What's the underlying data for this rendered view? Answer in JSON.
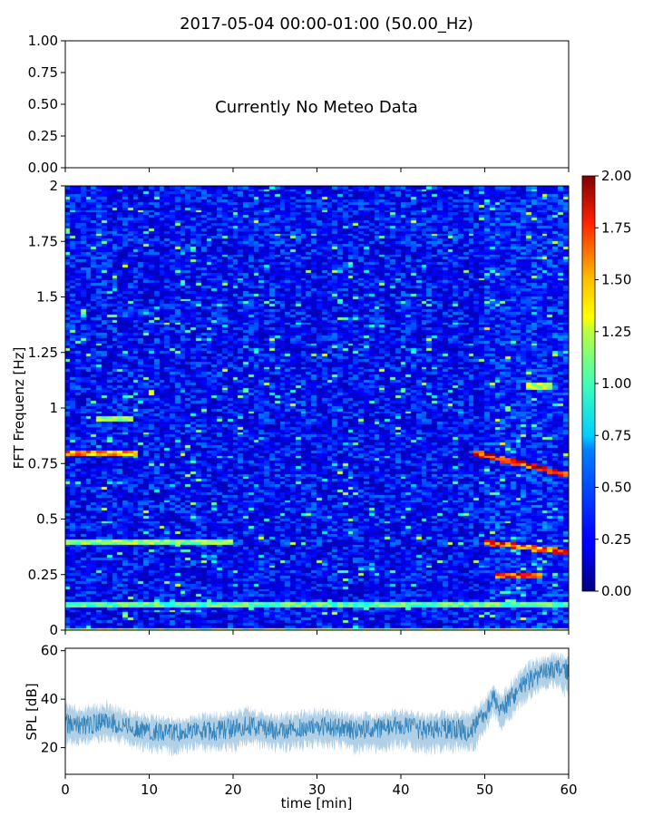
{
  "figure": {
    "title": "2017-05-04 00:00-01:00 (50.00_Hz)"
  },
  "chart_data": [
    {
      "type": "line",
      "panel": "meteo",
      "title": "",
      "xlabel": "",
      "ylabel": "",
      "ylim": [
        0,
        1
      ],
      "yticks": [
        "0.00",
        "0.25",
        "0.50",
        "0.75",
        "1.00"
      ],
      "xlim": [
        0,
        60
      ],
      "annotation": "Currently No Meteo Data",
      "series": []
    },
    {
      "type": "heatmap",
      "panel": "spectrogram",
      "title": "",
      "ylabel": "FFT Frequenz [Hz]",
      "xlim": [
        0,
        60
      ],
      "ylim": [
        0,
        2
      ],
      "yticks": [
        "0",
        "0.25",
        "0.5",
        "0.75",
        "1",
        "1.25",
        "1.5",
        "1.75",
        "2"
      ],
      "colormap": "jet",
      "colorbar": {
        "range": [
          0,
          2
        ],
        "ticks": [
          "0.00",
          "0.25",
          "0.50",
          "0.75",
          "1.00",
          "1.25",
          "1.50",
          "1.75",
          "2.00"
        ]
      },
      "background_level": 0.3,
      "features": [
        {
          "f_start": 0.12,
          "f_end": 0.12,
          "t_start": 0,
          "t_end": 60,
          "level": 1.0
        },
        {
          "f_start": 0.4,
          "f_end": 0.4,
          "t_start": 0,
          "t_end": 20,
          "level": 1.1
        },
        {
          "f_start": 0.8,
          "f_end": 0.8,
          "t_start": 0,
          "t_end": 9,
          "level": 1.6
        },
        {
          "f_start": 0.95,
          "f_end": 0.95,
          "t_start": 4,
          "t_end": 8,
          "level": 1.2
        },
        {
          "f_start": 0.8,
          "f_end": 0.7,
          "t_start": 49,
          "t_end": 60,
          "level": 1.8
        },
        {
          "f_start": 0.4,
          "f_end": 0.35,
          "t_start": 50,
          "t_end": 60,
          "level": 1.7
        },
        {
          "f_start": 0.25,
          "f_end": 0.25,
          "t_start": 51,
          "t_end": 57,
          "level": 1.8
        },
        {
          "f_start": 1.1,
          "f_end": 1.1,
          "t_start": 55,
          "t_end": 58,
          "level": 1.2
        },
        {
          "f_start": 0.0,
          "f_end": 0.0,
          "t_start": 0,
          "t_end": 60,
          "level": 1.2
        }
      ]
    },
    {
      "type": "line",
      "panel": "spl",
      "title": "",
      "xlabel": "time [min]",
      "ylabel": "SPL [dB]",
      "xlim": [
        0,
        60
      ],
      "ylim": [
        9,
        61
      ],
      "xticks": [
        "0",
        "10",
        "20",
        "30",
        "40",
        "50",
        "60"
      ],
      "yticks": [
        "20",
        "40",
        "60"
      ],
      "color": "#1f77b4",
      "series": [
        {
          "x": [
            0,
            2,
            5,
            8,
            10,
            13,
            15,
            18,
            20,
            22,
            25,
            28,
            30,
            33,
            35,
            38,
            40,
            43,
            45,
            48,
            49,
            50,
            51,
            52,
            53,
            54,
            55,
            56,
            57,
            58,
            59,
            60
          ],
          "center": [
            30,
            29,
            31,
            28,
            27,
            26,
            27,
            27,
            28,
            29,
            27,
            28,
            29,
            28,
            27,
            28,
            29,
            27,
            28,
            27,
            29,
            34,
            41,
            35,
            40,
            44,
            47,
            49,
            51,
            52,
            53,
            52
          ],
          "upper": [
            40,
            38,
            40,
            36,
            35,
            33,
            34,
            36,
            36,
            38,
            35,
            36,
            37,
            36,
            35,
            36,
            37,
            35,
            36,
            36,
            38,
            42,
            46,
            44,
            48,
            53,
            56,
            58,
            59,
            60,
            60,
            58
          ],
          "lower": [
            18,
            20,
            22,
            19,
            17,
            16,
            18,
            17,
            17,
            20,
            17,
            18,
            19,
            18,
            16,
            17,
            19,
            16,
            17,
            17,
            18,
            24,
            32,
            26,
            30,
            34,
            38,
            40,
            42,
            44,
            42,
            38
          ]
        }
      ]
    }
  ]
}
